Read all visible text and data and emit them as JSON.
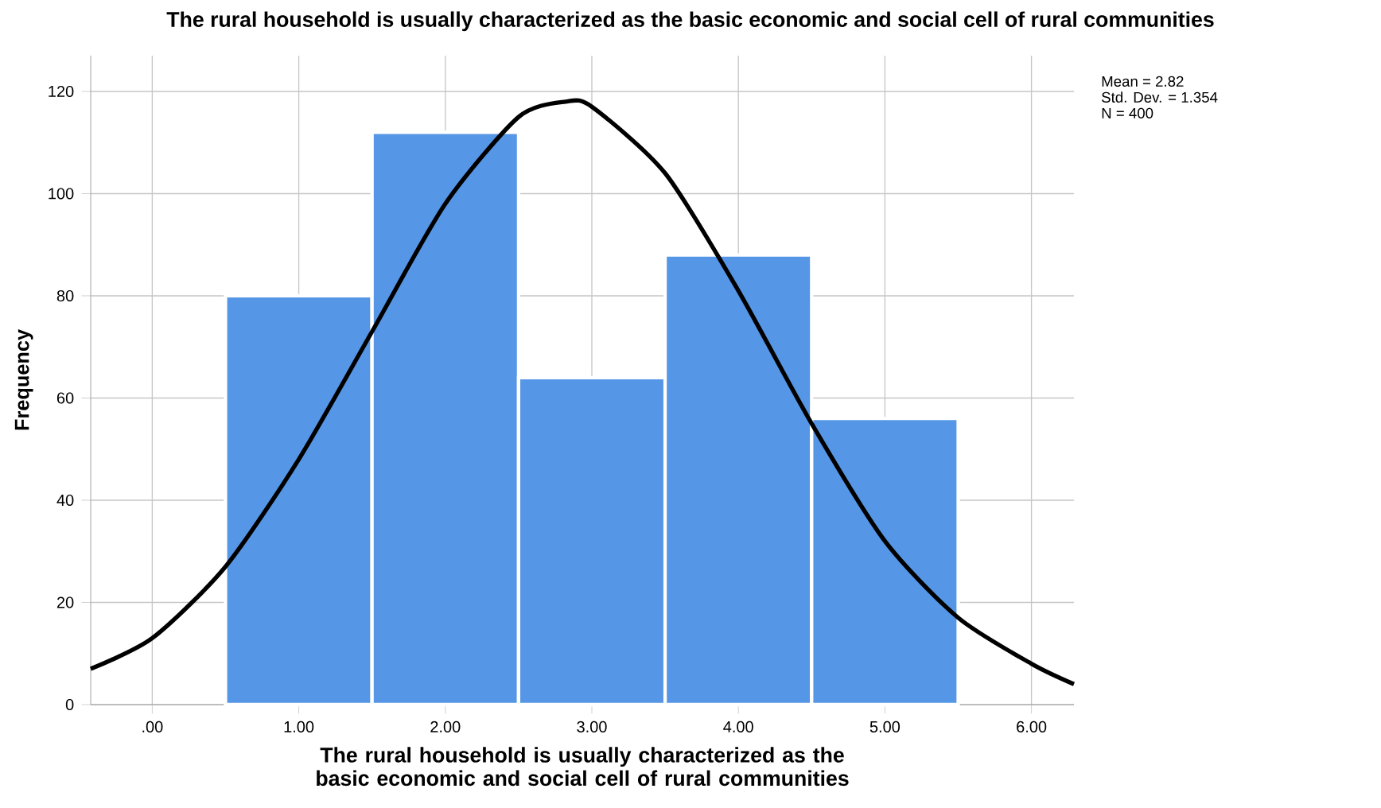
{
  "chart_data": {
    "type": "histogram",
    "title": "The rural household is usually characterized as the basic economic and social cell of rural communities",
    "xlabel": "The rural household is usually characterized as the basic economic and social cell of rural communities",
    "ylabel": "Frequency",
    "annotations": [
      "Mean = 2.82",
      "Std. Dev. = 1.354",
      "N = 400"
    ],
    "series": [
      {
        "color": "#5596e6",
        "bins": [
          0.5,
          1.5,
          2.5,
          3.5,
          4.5,
          5.5
        ],
        "values": [
          80,
          112,
          64,
          88,
          56
        ]
      },
      {
        "type": "line",
        "color": "#000000",
        "x": [
          -0.42,
          0,
          0.5,
          1,
          1.5,
          2,
          2.5,
          2.82,
          3,
          3.5,
          4,
          4.5,
          5,
          5.5,
          6,
          6.29
        ],
        "values": [
          7,
          13,
          27,
          48,
          73,
          98,
          115,
          118,
          117,
          104,
          81,
          55,
          32,
          17,
          8,
          4
        ]
      }
    ],
    "xlim": [
      -0.42,
      6.29
    ],
    "ylim": [
      0,
      127
    ],
    "xticks": [
      {
        "value": 0,
        "label": ".00"
      },
      {
        "value": 1,
        "label": "1.00"
      },
      {
        "value": 2,
        "label": "2.00"
      },
      {
        "value": 3,
        "label": "3.00"
      },
      {
        "value": 4,
        "label": "4.00"
      },
      {
        "value": 5,
        "label": "5.00"
      },
      {
        "value": 6,
        "label": "6.00"
      }
    ],
    "yticks": [
      0,
      20,
      40,
      60,
      80,
      100,
      120
    ],
    "grid": true,
    "marker": "none",
    "line_style": "solid"
  }
}
